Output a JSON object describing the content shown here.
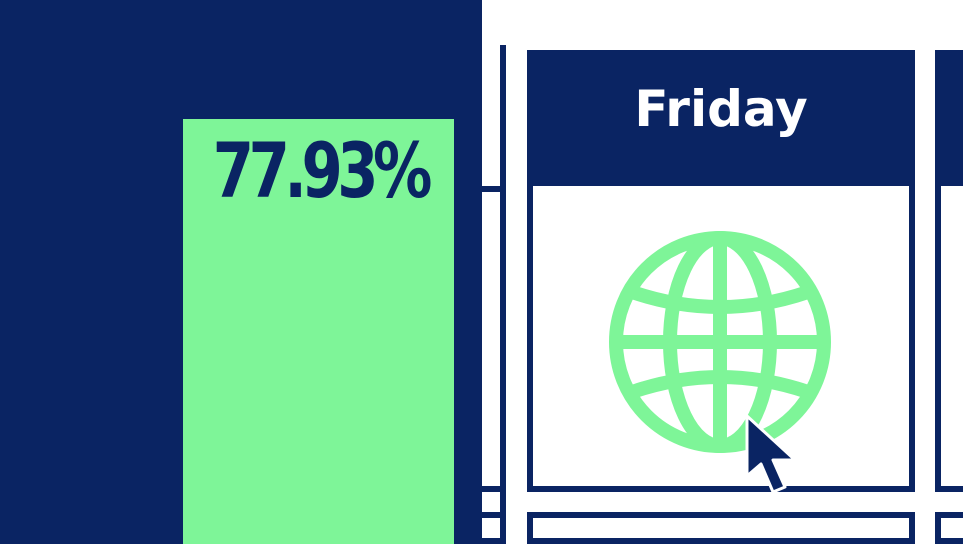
{
  "stat": {
    "value": "77.93%"
  },
  "day_card": {
    "label": "Friday"
  },
  "icons": {
    "main": "globe-icon",
    "pointer": "cursor-pointer-icon"
  },
  "colors": {
    "navy": "#0a2463",
    "green": "#7ef598",
    "white": "#ffffff"
  }
}
